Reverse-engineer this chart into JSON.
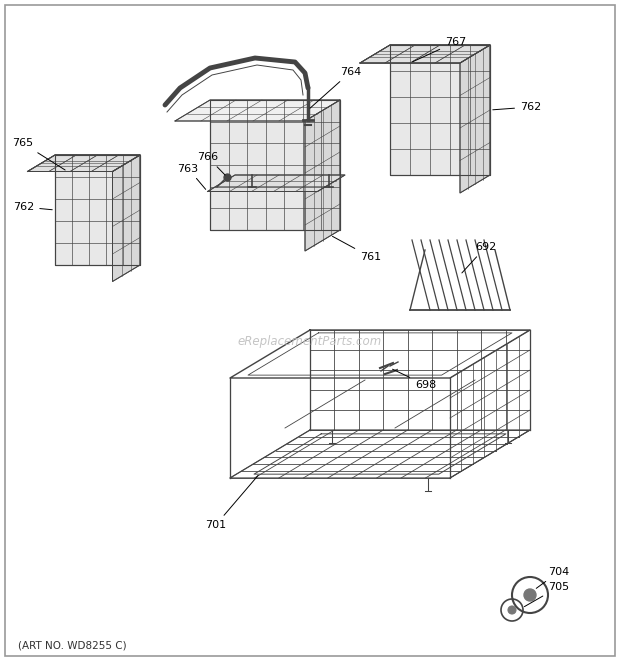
{
  "background_color": "#ffffff",
  "diagram_color": "#444444",
  "medium_gray": "#777777",
  "light_gray": "#aaaaaa",
  "footer_text": "(ART NO. WD8255 C)",
  "watermark_text": "eReplacementParts.com",
  "fig_width": 6.2,
  "fig_height": 6.61,
  "dpi": 100
}
